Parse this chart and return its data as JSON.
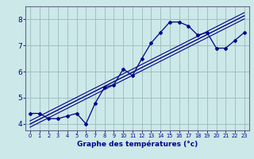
{
  "xlabel": "Graphe des températures (°c)",
  "bg_color": "#cce8e8",
  "line_color": "#00008b",
  "grid_color": "#99bbbb",
  "x_data": [
    0,
    1,
    2,
    3,
    4,
    5,
    6,
    7,
    8,
    9,
    10,
    11,
    12,
    13,
    14,
    15,
    16,
    17,
    18,
    19,
    20,
    21,
    22,
    23
  ],
  "y_main": [
    4.4,
    4.4,
    4.2,
    4.2,
    4.3,
    4.4,
    4.0,
    4.8,
    5.4,
    5.5,
    6.1,
    5.85,
    6.5,
    7.1,
    7.5,
    7.9,
    7.9,
    7.75,
    7.4,
    7.5,
    6.9,
    6.9,
    7.2,
    7.5
  ],
  "ylim": [
    3.75,
    8.5
  ],
  "xlim": [
    -0.5,
    23.5
  ],
  "yticks": [
    4,
    5,
    6,
    7,
    8
  ],
  "xticks": [
    0,
    1,
    2,
    3,
    4,
    5,
    6,
    7,
    8,
    9,
    10,
    11,
    12,
    13,
    14,
    15,
    16,
    17,
    18,
    19,
    20,
    21,
    22,
    23
  ],
  "reg_offsets": [
    0.0,
    -0.12,
    0.12
  ]
}
